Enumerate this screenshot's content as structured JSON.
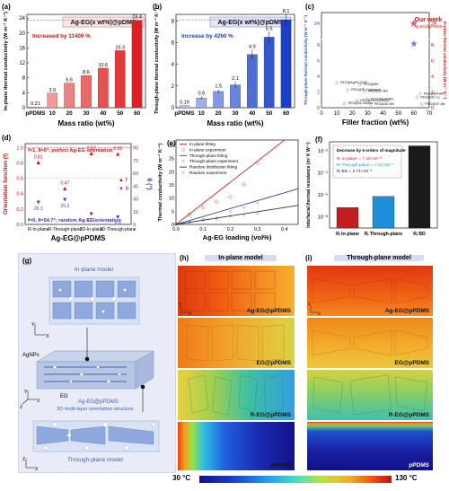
{
  "chart_data": [
    {
      "panel": "(a)",
      "type": "bar",
      "title": "Ag-EG(x wt%)@pDMS",
      "annotation": "Increased by 11400 %",
      "xlabel": "Mass ratio (wt%)",
      "ylabel": "In-plane thermal conductivity (W m⁻¹ K⁻¹)",
      "categories": [
        "pPDMS",
        "10",
        "20",
        "30",
        "40",
        "50",
        "60"
      ],
      "values": [
        0.21,
        3.9,
        6.6,
        8.6,
        10.6,
        15.3,
        23.4
      ],
      "labels": [
        "0.21",
        "3.9",
        "6.6",
        "8.6",
        "10.6",
        "15.3",
        "23.4"
      ],
      "yticks": [
        "0",
        "4",
        "8",
        "12",
        "16",
        "20",
        "24"
      ],
      "ylim": [
        0,
        25
      ]
    },
    {
      "panel": "(b)",
      "type": "bar",
      "title": "Ag-EG(x wt%)@pDMS",
      "annotation": "Increase by 4260 %",
      "xlabel": "Mass ratio (wt%)",
      "ylabel": "Through-plane thermal conductivity (W m⁻¹ K⁻¹)",
      "categories": [
        "pPDMS",
        "10",
        "20",
        "30",
        "40",
        "50",
        "60"
      ],
      "values": [
        0.19,
        0.9,
        1.5,
        2.1,
        4.9,
        6.5,
        8.1
      ],
      "labels": [
        "0.19",
        "0.9",
        "1.5",
        "2.1",
        "4.9",
        "6.5",
        "8.1"
      ],
      "yticks": [
        "0",
        "2",
        "4",
        "6",
        "8"
      ],
      "ylim": [
        0,
        8.6
      ]
    },
    {
      "panel": "(c)",
      "type": "scatter",
      "xlabel": "Filler fraction (wt%)",
      "ylabel_left": "Through-plane thermal conductivity (W m⁻¹ K⁻¹)",
      "ylabel_right": "In-plane thermal conductivity (W m⁻¹ K⁻¹)",
      "xticks": [
        "0",
        "10",
        "20",
        "30",
        "40",
        "50",
        "60",
        "70"
      ],
      "yticks_left": [
        "0",
        "2",
        "4",
        "6",
        "8",
        "24"
      ],
      "yticks_right": [
        "0",
        "2",
        "4",
        "6",
        "8",
        "24"
      ],
      "our_work": "Our work",
      "our_work_sub": "Ag-EG@pPDMS",
      "points": [
        {
          "label": "PEG@Ag/Fe-OHS",
          "x": 10,
          "y": 3.2
        },
        {
          "label": "PEG@BN",
          "x": 25,
          "y": 3.0
        },
        {
          "label": "PEG@3D Graphene",
          "x": 17,
          "y": 2.3
        },
        {
          "label": "PEG@3D BN",
          "x": 28,
          "y": 2.1
        },
        {
          "label": "PEG@BN-BN",
          "x": 64,
          "y": 1.8
        },
        {
          "label": "PEG@3D Cu",
          "x": 62,
          "y": 1.3
        },
        {
          "label": "PEG@GnP/BN",
          "x": 30,
          "y": 1.1
        },
        {
          "label": "PEG@Fe₃O₄/GNSs",
          "x": 23,
          "y": 0.9
        },
        {
          "label": "PEG@3D Mxene",
          "x": 15,
          "y": 0.6
        },
        {
          "label": "PEG@3D BN",
          "x": 32,
          "y": 0.45
        },
        {
          "label": "PEG@CF-BN",
          "x": 65,
          "y": 0.45
        },
        {
          "label": "Our work",
          "x": 60,
          "y": 23.4
        }
      ]
    },
    {
      "panel": "(d)",
      "type": "scatter",
      "xlabel": "Ag-EG@pPDMS",
      "ylabel_left": "Orientation function (f)",
      "ylabel_right": "θ (°)",
      "top_note": "f=1,  θ=0°;  perfect Ag-EG orientation",
      "bottom_note": "f=0,  θ=54.7°;  random Ag-EG orientation",
      "categories": [
        "R-In-plane",
        "R-Through-plane",
        "3D-In-plane",
        "3D-Through-plane"
      ],
      "f_values": [
        0.81,
        0.47,
        0.93,
        0.92
      ],
      "theta_values": [
        26.3,
        29.3,
        12.5,
        8.9
      ],
      "f_labels": [
        "0.81",
        "0.47",
        "0.93",
        "0.92"
      ],
      "theta_labels": [
        "26.3",
        "29.3",
        "12.5",
        "8.9"
      ],
      "yticks_left": [
        "0.0",
        "0.2",
        "0.4",
        "0.6",
        "0.8",
        "1.0"
      ],
      "yticks_right": [
        "0",
        "15",
        "30",
        "45",
        "60",
        "75",
        "90"
      ],
      "legend": [
        "f",
        "θ"
      ]
    },
    {
      "panel": "(e)",
      "type": "line",
      "xlabel": "Ag-EG loading (vol%)",
      "ylabel": "Thermal conductivity (W m⁻¹ K⁻¹)",
      "xticks": [
        "0.0",
        "0.1",
        "0.2",
        "0.3",
        "0.4"
      ],
      "yticks": [
        "0",
        "5",
        "10",
        "15",
        "20",
        "25",
        "30"
      ],
      "legend": [
        "In-plane fitting",
        "In-plane experiment",
        "Through-plane fitting",
        "Through-plane experiment",
        "Random distribution fitting",
        "Random experiment"
      ],
      "series": [
        {
          "name": "In-plane experiment",
          "x": [
            0.0,
            0.05,
            0.1,
            0.15,
            0.2,
            0.25,
            0.3
          ],
          "y": [
            0.2,
            3.9,
            6.6,
            8.6,
            10.6,
            15.3,
            23.4
          ]
        },
        {
          "name": "Through-plane experiment",
          "x": [
            0.0,
            0.05,
            0.1,
            0.15,
            0.2,
            0.25,
            0.3
          ],
          "y": [
            0.19,
            0.9,
            1.5,
            2.1,
            4.9,
            6.5,
            8.1
          ]
        },
        {
          "name": "Random experiment",
          "x": [
            0.0,
            0.05,
            0.1,
            0.15,
            0.2,
            0.25,
            0.3
          ],
          "y": [
            0.2,
            1.2,
            2.0,
            2.6,
            3.3,
            3.8,
            4.2
          ]
        }
      ],
      "fits": [
        {
          "name": "In-plane fitting",
          "slope": 80,
          "color": "#d62728"
        },
        {
          "name": "Through-plane fitting",
          "slope": 30,
          "color": "#1f3fa8"
        },
        {
          "name": "Random distribution fitting",
          "slope": 16,
          "color": "#333333"
        }
      ],
      "xlim": [
        0,
        0.45
      ],
      "ylim": [
        0,
        32
      ]
    },
    {
      "panel": "(f)",
      "type": "bar",
      "ylabel": "Interfacial thermal resistance (m² K W⁻¹)",
      "note": "Decrease by 6 orders of magnitude",
      "equations": [
        "Rᵢ In-plane = 7.16×10⁻⁸",
        "Rᵢ Through-plane = 7.21×10⁻⁷",
        "Rᵢ BD = 2.71×10⁻²"
      ],
      "categories": [
        "Rᵢ In-plane",
        "Rᵢ Through-plane",
        "Rᵢ BD"
      ],
      "values": [
        7.16e-08,
        7.21e-07,
        0.0271
      ],
      "yticks": [
        "10⁻⁸",
        "10⁻⁶",
        "10⁻⁴",
        "10⁻²"
      ],
      "colors": [
        "#c41e1e",
        "#1e8fd8",
        "#1a1a1a"
      ]
    }
  ],
  "figure": {
    "g": {
      "panel": "(g)",
      "in_plane_model": "In-plane model",
      "through_plane_model": "Through-plane model",
      "agnps": "AgNPs",
      "eg": "EG",
      "structure_title": "Ag-EG@pPDMS",
      "structure_sub": "3D multi-layer orientation structure"
    },
    "h": {
      "panel": "(h)",
      "title": "In-plane model",
      "rows": [
        "Ag-EG@pPDMS",
        "EG@pPDMS",
        "R-EG@pPDMS",
        "pPDMS"
      ]
    },
    "i": {
      "panel": "(i)",
      "title": "Through-plane model",
      "rows": [
        "Ag-EG@pPDMS",
        "EG@pPDMS",
        "R-EG@pPDMS",
        "pPDMS"
      ]
    },
    "colorbar": {
      "min": "30 °C",
      "max": "130 °C"
    }
  },
  "colors": {
    "red_bar_light": "#f2b3b3",
    "red_bar_dark": "#e02020",
    "blue_bar_light": "#b8c8f0",
    "blue_bar_dark": "#1a3fc8",
    "panel_bg": "#e9ecf6"
  }
}
